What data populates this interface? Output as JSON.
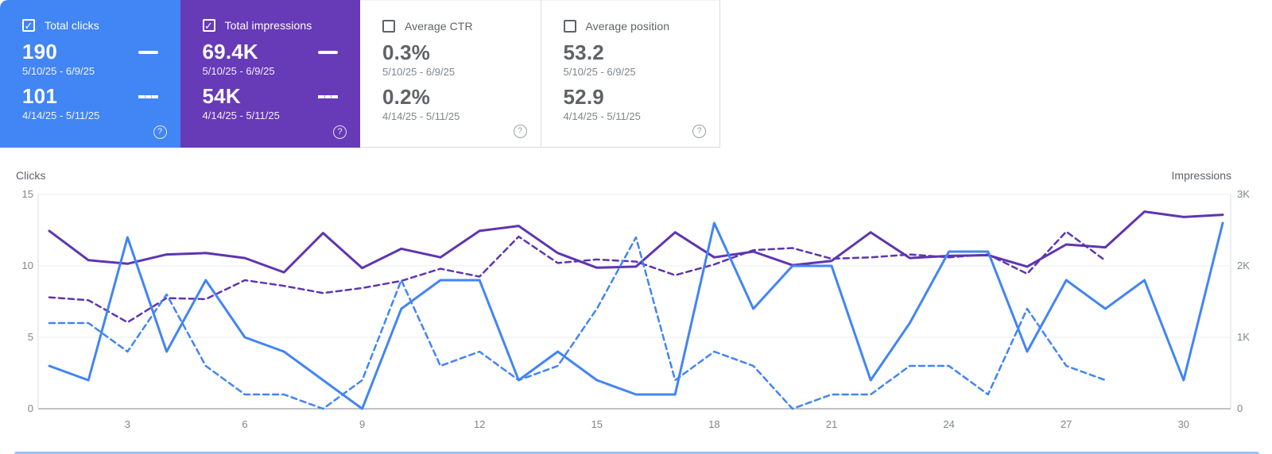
{
  "colors": {
    "clicks_blue": "#4285f4",
    "impressions_purple_card": "#673ab7",
    "impressions_purple_line": "#5e35b1",
    "grid_line": "#ebedef",
    "axis_line": "#dadce0",
    "zero_axis_line": "#80868b",
    "text_gray": "#5f6368",
    "text_light_gray": "#80868b"
  },
  "icons": {
    "checkbox_check": "✓",
    "help": "?"
  },
  "cards": [
    {
      "label": "Total clicks",
      "checked": true,
      "value1": "190",
      "range1": "5/10/25 - 6/9/25",
      "value2": "101",
      "range2": "4/14/25 - 5/11/25"
    },
    {
      "label": "Total impressions",
      "checked": true,
      "value1": "69.4K",
      "range1": "5/10/25 - 6/9/25",
      "value2": "54K",
      "range2": "4/14/25 - 5/11/25"
    },
    {
      "label": "Average CTR",
      "checked": false,
      "value1": "0.3%",
      "range1": "5/10/25 - 6/9/25",
      "value2": "0.2%",
      "range2": "4/14/25 - 5/11/25"
    },
    {
      "label": "Average position",
      "checked": false,
      "value1": "53.2",
      "range1": "5/10/25 - 6/9/25",
      "value2": "52.9",
      "range2": "4/14/25 - 5/11/25"
    }
  ],
  "chart_data": {
    "type": "line",
    "x_days": 31,
    "x_tick_days": [
      3,
      6,
      9,
      12,
      15,
      18,
      21,
      24,
      27,
      30
    ],
    "x_tick_labels": [
      "3",
      "6",
      "9",
      "12",
      "15",
      "18",
      "21",
      "24",
      "27",
      "30"
    ],
    "left_axis": {
      "title": "Clicks",
      "range": [
        0,
        15
      ],
      "tick_values": [
        0,
        5,
        10,
        15
      ],
      "tick_labels": [
        "0",
        "5",
        "10",
        "15"
      ]
    },
    "right_axis": {
      "title": "Impressions",
      "range": [
        0,
        3000
      ],
      "tick_values": [
        0,
        1000,
        2000,
        3000
      ],
      "tick_labels": [
        "0",
        "1K",
        "2K",
        "3K"
      ]
    },
    "grid": true,
    "series": [
      {
        "key": "clicks-current",
        "name": "Total clicks 5/10/25 - 6/9/25",
        "axis": "left",
        "style": "solid",
        "color": "#4285f4",
        "values": [
          3,
          2,
          12,
          4,
          9,
          5,
          4,
          2,
          0,
          7,
          9,
          9,
          2,
          4,
          2,
          1,
          1,
          13,
          7,
          10,
          10,
          2,
          6,
          11,
          11,
          4,
          9,
          7,
          9,
          2,
          13
        ]
      },
      {
        "key": "clicks-previous",
        "name": "Total clicks 4/14/25 - 5/11/25",
        "axis": "left",
        "style": "dashed",
        "color": "#4285f4",
        "values": [
          6,
          6,
          4,
          8,
          3,
          1,
          1,
          0,
          2,
          9,
          3,
          4,
          2,
          3,
          7,
          12,
          2,
          4,
          3,
          0,
          1,
          1,
          3,
          3,
          1,
          7,
          3,
          2
        ]
      },
      {
        "key": "impressions-current",
        "name": "Total impressions 5/10/25 - 6/9/25",
        "axis": "right",
        "style": "solid",
        "color": "#5e35b1",
        "values": [
          2490,
          2080,
          2030,
          2160,
          2180,
          2110,
          1910,
          2460,
          1970,
          2240,
          2120,
          2490,
          2560,
          2180,
          1975,
          1990,
          2470,
          2120,
          2200,
          2010,
          2070,
          2470,
          2110,
          2140,
          2150,
          1990,
          2300,
          2260,
          2760,
          2685,
          2715
        ]
      },
      {
        "key": "impressions-previous",
        "name": "Total impressions 4/14/25 - 5/11/25",
        "axis": "right",
        "style": "dashed",
        "color": "#5e35b1",
        "values": [
          1560,
          1520,
          1210,
          1550,
          1535,
          1800,
          1720,
          1620,
          1690,
          1790,
          1960,
          1850,
          2410,
          2040,
          2090,
          2060,
          1870,
          2020,
          2220,
          2250,
          2100,
          2120,
          2160,
          2120,
          2160,
          1890,
          2480,
          2075
        ]
      }
    ]
  }
}
